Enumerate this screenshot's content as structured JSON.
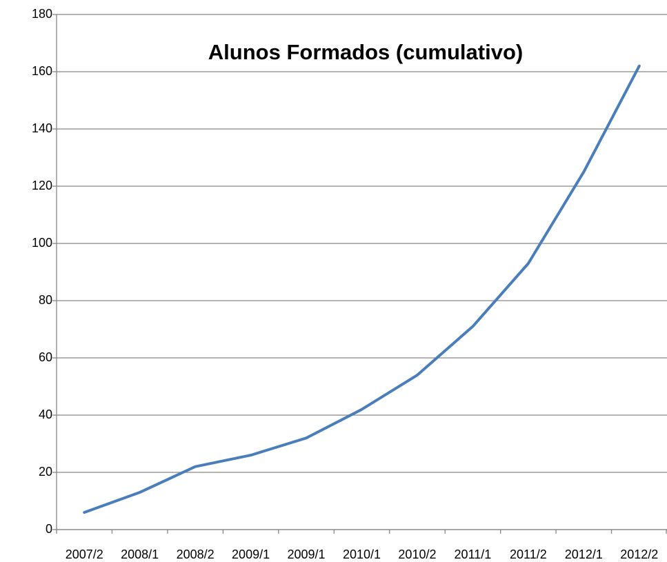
{
  "chart_data": {
    "type": "line",
    "title": "Alunos Formados (cumulativo)",
    "categories": [
      "2007/2",
      "2008/1",
      "2008/2",
      "2009/1",
      "2009/1",
      "2010/1",
      "2010/2",
      "2011/1",
      "2011/2",
      "2012/1",
      "2012/2"
    ],
    "values": [
      6,
      13,
      22,
      26,
      32,
      42,
      54,
      71,
      93,
      125,
      162
    ],
    "color": "#4a7ebb",
    "ylim": [
      0,
      180
    ],
    "yticks": [
      0,
      20,
      40,
      60,
      80,
      100,
      120,
      140,
      160,
      180
    ],
    "grid": true
  }
}
